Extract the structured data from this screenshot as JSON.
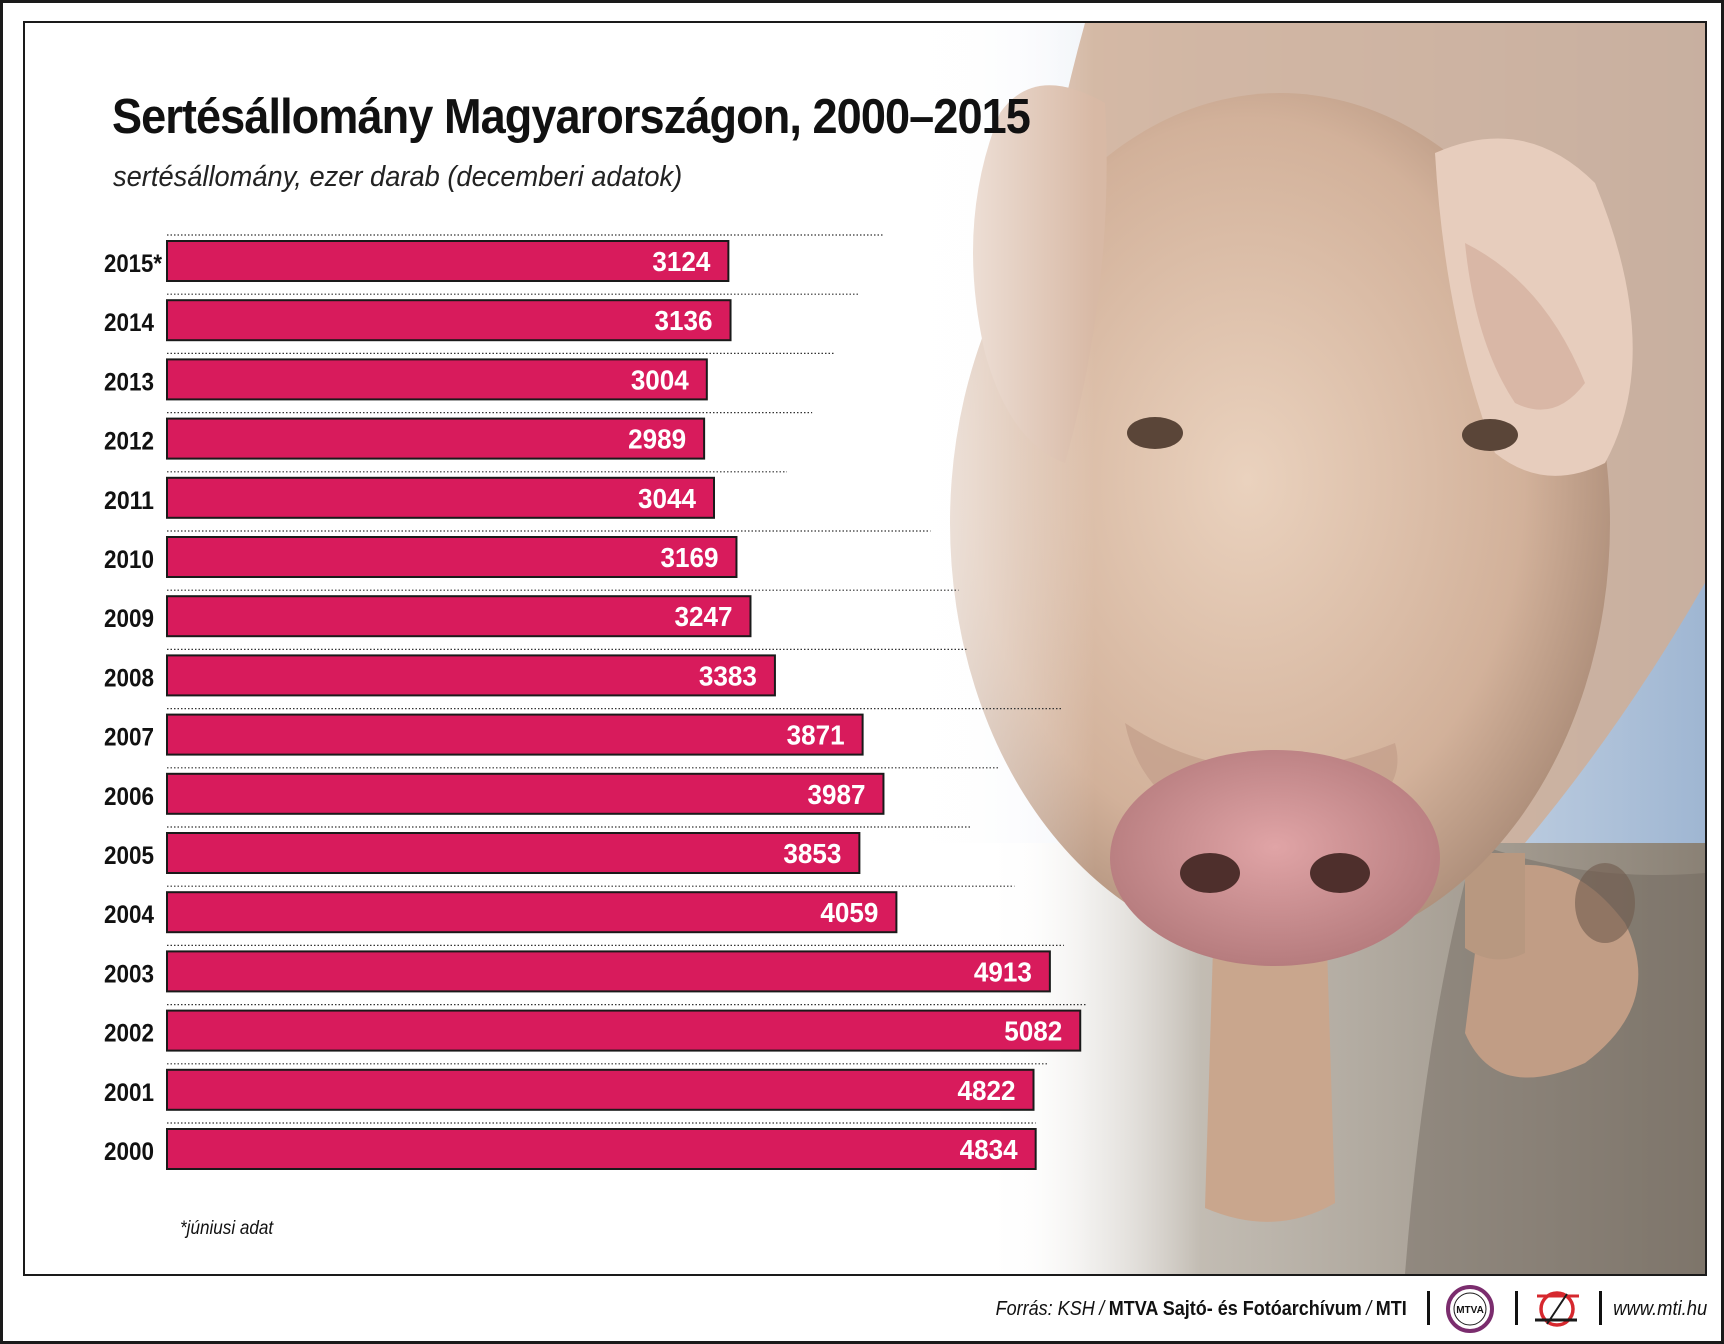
{
  "title": "Sertésállomány Magyarországon, 2000–2015",
  "subtitle": "sertésállomány, ezer darab (decemberi adatok)",
  "footnote": "*júniusi adat",
  "photo_icon": "pig-photo",
  "colors": {
    "bar": "#d81b5c",
    "bar_border": "#1a1a1a",
    "text": "#111111",
    "logo_ring": "#7b2d6e",
    "logo_red": "#d6282e"
  },
  "chart_data": {
    "type": "bar",
    "orientation": "horizontal",
    "title": "Sertésállomány Magyarországon, 2000–2015",
    "subtitle": "sertésállomány, ezer darab (decemberi adatok)",
    "categories": [
      "2015*",
      "2014",
      "2013",
      "2012",
      "2011",
      "2010",
      "2009",
      "2008",
      "2007",
      "2006",
      "2005",
      "2004",
      "2003",
      "2002",
      "2001",
      "2000"
    ],
    "values": [
      3124,
      3136,
      3004,
      2989,
      3044,
      3169,
      3247,
      3383,
      3871,
      3987,
      3853,
      4059,
      4913,
      5082,
      4822,
      4834
    ],
    "value_labels": [
      "3124",
      "3136",
      "3004",
      "2989",
      "3044",
      "3169",
      "3247",
      "3383",
      "3871",
      "3987",
      "3853",
      "4059",
      "4913",
      "5082",
      "4822",
      "4834"
    ],
    "xlim": [
      0,
      5082
    ],
    "grid": false,
    "legend": "none"
  },
  "footer": {
    "source_label": "Forrás: KSH",
    "sep": "/",
    "source_org": "MTVA Sajtó- és Fotóarchívum",
    "source_agency": "MTI",
    "logo1_text": "MTVA",
    "logo1_icon": "mtva-logo-icon",
    "logo2_icon": "mti-logo-icon",
    "website": "www.mti.hu"
  }
}
